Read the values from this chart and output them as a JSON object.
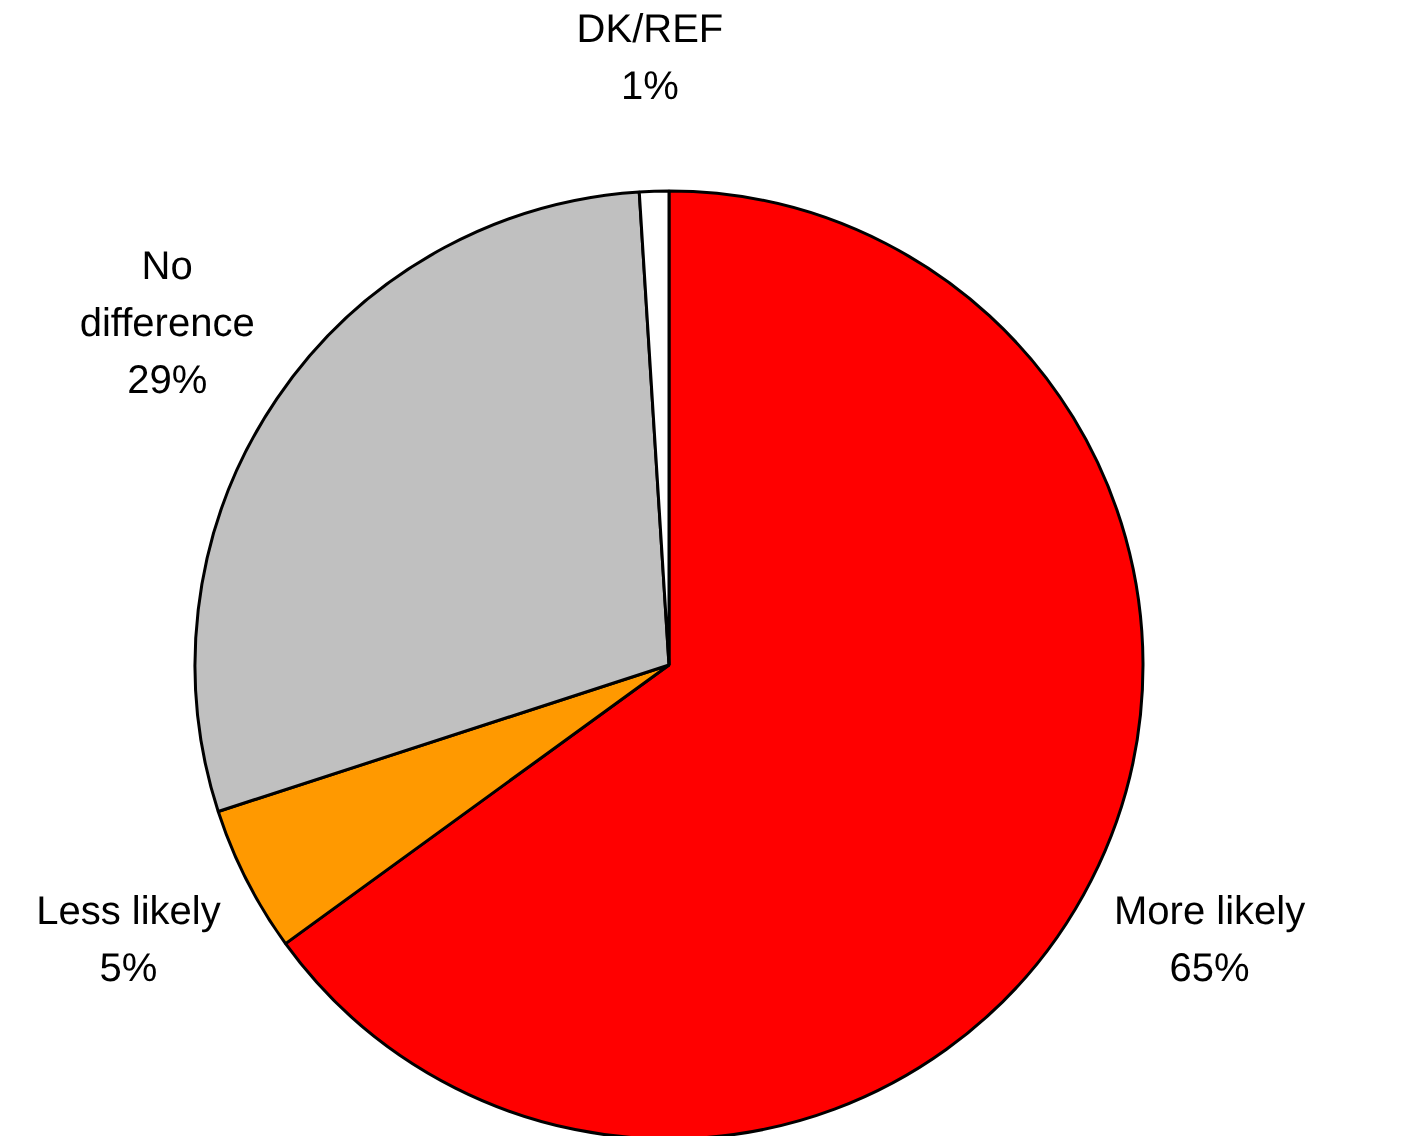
{
  "chart_data": {
    "type": "pie",
    "categories": [
      "More likely",
      "Less likely",
      "No\ndifference",
      "DK/REF"
    ],
    "values": [
      65,
      5,
      29,
      1
    ],
    "colors": [
      "#ff0000",
      "#ff9900",
      "#c0c0c0",
      "#ffffff"
    ],
    "value_labels": [
      "65%",
      "5%",
      "29%",
      "1%"
    ]
  }
}
